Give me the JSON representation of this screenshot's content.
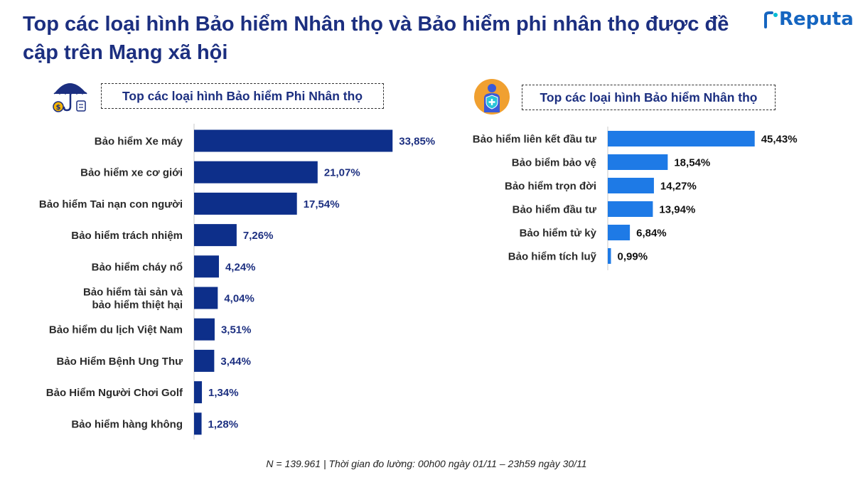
{
  "title": "Top các loại hình Bảo hiểm Nhân thọ và Bảo hiểm phi nhân thọ được đề cập trên Mạng xã hội",
  "brand": {
    "name": "Reputa",
    "color": "#1565c0"
  },
  "colors": {
    "title": "#1c2f80",
    "left_bar": "#0d2f8a",
    "right_bar": "#1e7ae6"
  },
  "icons": {
    "left": "umbrella-money-icon",
    "right": "person-shield-icon"
  },
  "chart_data": [
    {
      "type": "bar",
      "orientation": "horizontal",
      "title": "Top các loại hình Bảo hiểm Phi Nhân thọ",
      "categories": [
        "Bảo hiểm Xe máy",
        "Bảo hiểm xe cơ giới",
        "Bảo hiểm Tai nạn con người",
        "Bảo hiểm trách nhiệm",
        "Bảo hiểm cháy nổ",
        "Bảo hiểm tài sản và bảo hiểm thiệt hại",
        "Bảo hiểm du lịch Việt Nam",
        "Bảo Hiểm Bệnh Ung Thư",
        "Bảo Hiểm Người Chơi Golf",
        "Bảo hiểm hàng không"
      ],
      "values": [
        33.85,
        21.07,
        17.54,
        7.26,
        4.24,
        4.04,
        3.51,
        3.44,
        1.34,
        1.28
      ],
      "labels": [
        "33,85%",
        "21,07%",
        "17,54%",
        "7,26%",
        "4,24%",
        "4,04%",
        "3,51%",
        "3,44%",
        "1,34%",
        "1,28%"
      ]
    },
    {
      "type": "bar",
      "orientation": "horizontal",
      "title": "Top các loại hình Bảo hiểm Nhân thọ",
      "categories": [
        "Bảo hiểm liên kết đầu tư",
        "Bảo biểm bảo vệ",
        "Bảo hiểm trọn đời",
        "Bảo hiểm đầu tư",
        "Bảo hiểm tử kỳ",
        "Bảo hiểm tích luỹ"
      ],
      "values": [
        45.43,
        18.54,
        14.27,
        13.94,
        6.84,
        0.99
      ],
      "labels": [
        "45,43%",
        "18,54%",
        "14,27%",
        "13,94%",
        "6,84%",
        "0,99%"
      ]
    }
  ],
  "footnote": "N = 139.961 | Thời gian đo lường: 00h00 ngày 01/11 – 23h59 ngày 30/11"
}
